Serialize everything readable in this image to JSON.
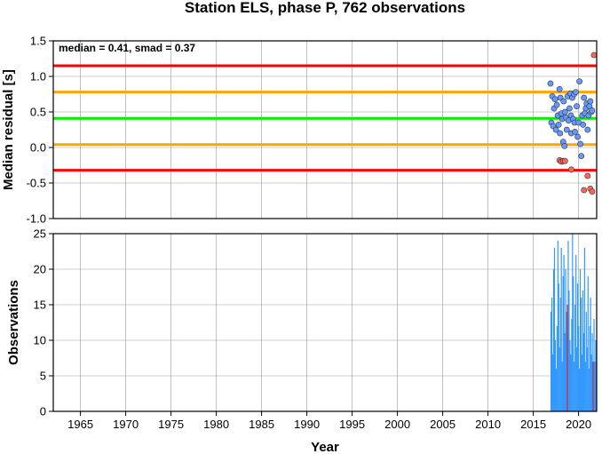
{
  "chart_data": [
    {
      "type": "scatter",
      "title": "Station ELS, phase P, 762 observations",
      "xlabel": "",
      "ylabel": "Median residual [s]",
      "xlim": [
        1962,
        2022
      ],
      "ylim": [
        -1.0,
        1.5
      ],
      "yticks": [
        "1.5",
        "1.0",
        "0.5",
        "0.0",
        "-0.5",
        "-1.0"
      ],
      "annotation": "median = 0.41, smad = 0.37",
      "grid": true,
      "reference_lines": [
        {
          "y": 1.15,
          "color": "#ff0000"
        },
        {
          "y": 0.78,
          "color": "#ffa500"
        },
        {
          "y": 0.41,
          "color": "#00ee00"
        },
        {
          "y": 0.04,
          "color": "#ffa500"
        },
        {
          "y": -0.32,
          "color": "#ff0000"
        }
      ],
      "series": [
        {
          "color": "#6699ff",
          "points": [
            [
              2016.9,
              0.9
            ],
            [
              2017.0,
              0.35
            ],
            [
              2017.1,
              0.72
            ],
            [
              2017.2,
              0.3
            ],
            [
              2017.3,
              0.55
            ],
            [
              2017.4,
              0.68
            ],
            [
              2017.5,
              0.25
            ],
            [
              2017.6,
              0.6
            ],
            [
              2017.7,
              0.45
            ],
            [
              2017.8,
              0.32
            ],
            [
              2017.9,
              0.82
            ],
            [
              2017.95,
              0.2
            ],
            [
              2018.0,
              0.7
            ],
            [
              2018.1,
              0.48
            ],
            [
              2018.2,
              0.4
            ],
            [
              2018.3,
              0.08
            ],
            [
              2018.35,
              0.65
            ],
            [
              2018.45,
              0.02
            ],
            [
              2018.5,
              0.5
            ],
            [
              2018.6,
              0.42
            ],
            [
              2018.7,
              0.25
            ],
            [
              2018.8,
              0.72
            ],
            [
              2018.9,
              0.38
            ],
            [
              2019.0,
              0.55
            ],
            [
              2019.1,
              0.76
            ],
            [
              2019.15,
              0.45
            ],
            [
              2019.2,
              0.2
            ],
            [
              2019.3,
              0.7
            ],
            [
              2019.4,
              0.4
            ],
            [
              2019.5,
              0.75
            ],
            [
              2019.55,
              0.35
            ],
            [
              2019.6,
              0.22
            ],
            [
              2019.7,
              0.78
            ],
            [
              2019.8,
              0.58
            ],
            [
              2019.9,
              0.15
            ],
            [
              2020.0,
              0.35
            ],
            [
              2020.1,
              0.93
            ],
            [
              2020.2,
              0.05
            ],
            [
              2020.3,
              -0.12
            ],
            [
              2020.4,
              0.45
            ],
            [
              2020.5,
              0.32
            ],
            [
              2020.6,
              0.7
            ],
            [
              2020.7,
              0.48
            ],
            [
              2020.8,
              0.55
            ],
            [
              2020.9,
              0.62
            ],
            [
              2021.0,
              0.25
            ],
            [
              2021.1,
              0.45
            ],
            [
              2021.2,
              0.58
            ],
            [
              2021.3,
              0.65
            ],
            [
              2021.4,
              0.5
            ],
            [
              2021.5,
              0.52
            ]
          ]
        },
        {
          "color": "#ff6655",
          "points": [
            [
              2017.9,
              -0.18
            ],
            [
              2018.1,
              -0.2
            ],
            [
              2018.3,
              -0.19
            ],
            [
              2018.5,
              -0.19
            ],
            [
              2019.2,
              -0.31
            ],
            [
              2020.6,
              -0.6
            ],
            [
              2021.0,
              -0.4
            ],
            [
              2021.3,
              -0.58
            ],
            [
              2021.5,
              -0.62
            ],
            [
              2021.7,
              1.3
            ]
          ]
        }
      ]
    },
    {
      "type": "bar",
      "title": "",
      "xlabel": "Year",
      "ylabel": "Observations",
      "xlim": [
        1962,
        2022
      ],
      "ylim": [
        0,
        25
      ],
      "xticks": [
        "1965",
        "1970",
        "1975",
        "1980",
        "1985",
        "1990",
        "1995",
        "2000",
        "2005",
        "2010",
        "2015",
        "2020"
      ],
      "yticks": [
        "0",
        "5",
        "10",
        "15",
        "20",
        "25"
      ],
      "grid": true,
      "bars_start": 2016.9,
      "bars_step": 0.095,
      "series": [
        {
          "color": "#3399ff",
          "values": [
            14,
            16,
            8,
            20,
            23,
            10,
            6,
            12,
            24,
            18,
            9,
            16,
            23,
            7,
            19,
            22,
            11,
            20,
            14,
            6,
            24,
            17,
            10,
            8,
            13,
            25,
            19,
            7,
            15,
            22,
            9,
            18,
            12,
            6,
            20,
            16,
            8,
            17,
            11,
            23,
            7,
            14,
            9,
            19,
            6,
            12,
            16,
            8,
            11,
            5,
            13,
            7,
            10,
            4,
            12,
            8,
            6,
            10,
            3,
            7,
            4,
            9,
            3,
            6,
            2
          ]
        },
        {
          "color": "#dd2222",
          "values": [
            0,
            0,
            0,
            0,
            0,
            0,
            0,
            0,
            0,
            0,
            0,
            0,
            0,
            0,
            0,
            0,
            0,
            0,
            0,
            15,
            0,
            0,
            0,
            0,
            0,
            0,
            0,
            0,
            0,
            0,
            0,
            0,
            0,
            0,
            0,
            0,
            0,
            0,
            0,
            0,
            0,
            0,
            0,
            0,
            0,
            0,
            0,
            0,
            0,
            7,
            0,
            0,
            0,
            0,
            11,
            0,
            8,
            0,
            0,
            11,
            0,
            0,
            12,
            0,
            0
          ]
        }
      ]
    }
  ]
}
